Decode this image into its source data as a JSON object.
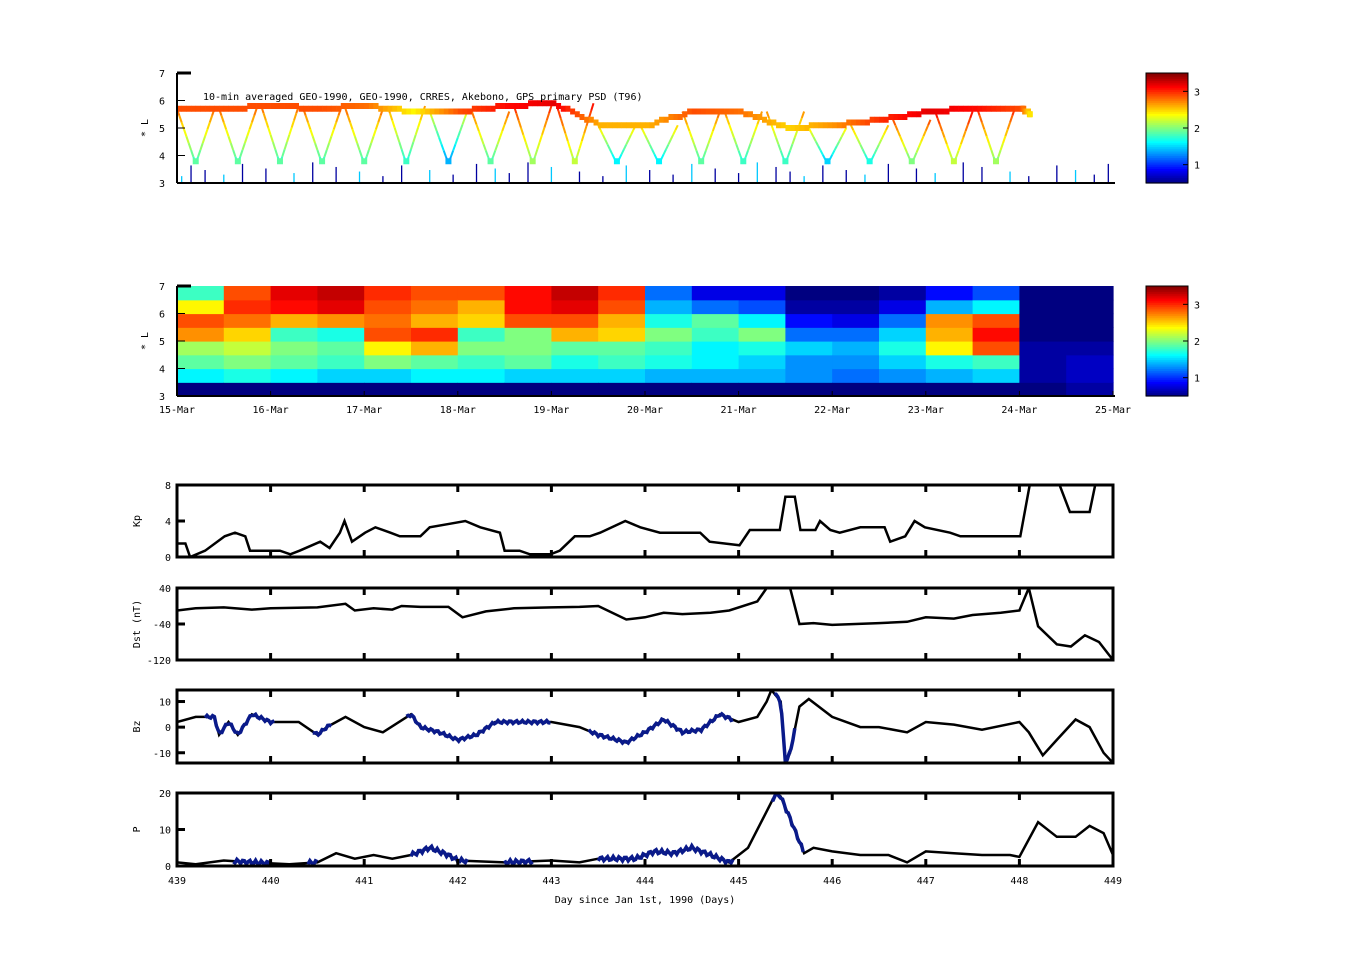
{
  "chart_data": [
    {
      "type": "scatter",
      "title": "10-min averaged GEO-1990, GEO-1990, CRRES, Akebono, GPS  primary PSD (T96)",
      "ylabel": "L*",
      "ylim": [
        3,
        7
      ],
      "yticks": [
        "3",
        "4",
        "5",
        "6",
        "7"
      ],
      "xlim": [
        "15-Mar",
        "25-Mar"
      ],
      "colorbar": {
        "clim": [
          0.5,
          3.5
        ],
        "ticks": [
          "1",
          "2",
          "3"
        ],
        "colormap": "jet"
      },
      "apogee_track": [
        [
          15.0,
          5.7,
          2.9
        ],
        [
          15.5,
          5.7,
          2.9
        ],
        [
          16.0,
          5.8,
          2.9
        ],
        [
          16.5,
          5.7,
          2.9
        ],
        [
          17.0,
          5.8,
          2.8
        ],
        [
          17.5,
          5.6,
          2.4
        ],
        [
          18.0,
          5.6,
          2.9
        ],
        [
          18.5,
          5.8,
          3.1
        ],
        [
          19.0,
          5.9,
          3.2
        ],
        [
          19.5,
          5.1,
          2.6
        ],
        [
          20.0,
          5.1,
          2.6
        ],
        [
          20.5,
          5.6,
          2.9
        ],
        [
          21.0,
          5.6,
          2.8
        ],
        [
          21.5,
          5.0,
          2.5
        ],
        [
          22.0,
          5.1,
          2.7
        ],
        [
          22.5,
          5.3,
          3.0
        ],
        [
          23.0,
          5.6,
          3.2
        ],
        [
          23.5,
          5.7,
          3.1
        ],
        [
          24.0,
          5.7,
          2.9
        ],
        [
          24.1,
          5.5,
          2.4
        ]
      ],
      "pass_times": [
        15.2,
        15.65,
        16.1,
        16.55,
        17.0,
        17.45,
        17.9,
        18.35,
        18.8,
        19.25,
        19.7,
        20.15,
        20.6,
        21.05,
        21.5,
        21.95,
        22.4,
        22.85,
        23.3,
        23.75
      ],
      "gps_spike_times": [
        15.05,
        15.15,
        15.3,
        15.5,
        15.7,
        15.95,
        16.25,
        16.45,
        16.7,
        16.95,
        17.2,
        17.4,
        17.7,
        17.95,
        18.2,
        18.4,
        18.55,
        18.75,
        19.0,
        19.3,
        19.55,
        19.8,
        20.05,
        20.3,
        20.5,
        20.75,
        21.0,
        21.2,
        21.4,
        21.55,
        21.7,
        21.9,
        22.15,
        22.35,
        22.6,
        22.9,
        23.1,
        23.4,
        23.6,
        23.9,
        24.1,
        24.4,
        24.6,
        24.8,
        24.95
      ]
    },
    {
      "type": "heatmap",
      "ylabel": "L*",
      "ylim": [
        3,
        7
      ],
      "yticks": [
        "3",
        "4",
        "5",
        "6",
        "7"
      ],
      "xticks": [
        "15-Mar",
        "16-Mar",
        "17-Mar",
        "18-Mar",
        "19-Mar",
        "20-Mar",
        "21-Mar",
        "22-Mar",
        "23-Mar",
        "24-Mar",
        "25-Mar"
      ],
      "l_bins": [
        3.25,
        3.75,
        4.25,
        4.75,
        5.25,
        5.75,
        6.25,
        6.75
      ],
      "colorbar": {
        "clim": [
          0.5,
          3.5
        ],
        "ticks": [
          "1",
          "2",
          "3"
        ],
        "colormap": "jet"
      },
      "values": [
        [
          0.5,
          1.6,
          1.9,
          2.1,
          2.7,
          2.9,
          2.4,
          1.8
        ],
        [
          0.5,
          1.7,
          2.0,
          2.2,
          2.5,
          2.8,
          3.0,
          2.9
        ],
        [
          0.5,
          1.6,
          1.9,
          2.0,
          1.8,
          2.6,
          3.1,
          3.2
        ],
        [
          0.5,
          1.5,
          1.8,
          1.9,
          1.7,
          2.7,
          3.2,
          3.3
        ],
        [
          0.5,
          1.5,
          2.0,
          2.4,
          2.9,
          2.8,
          2.9,
          3.0
        ],
        [
          0.5,
          1.6,
          1.9,
          2.6,
          3.0,
          2.6,
          2.8,
          2.9
        ],
        [
          0.5,
          1.6,
          1.8,
          2.0,
          1.8,
          2.5,
          2.6,
          2.9
        ],
        [
          0.5,
          1.5,
          1.9,
          2.0,
          2.0,
          2.9,
          3.1,
          3.1
        ],
        [
          0.5,
          1.5,
          1.7,
          1.9,
          2.6,
          2.9,
          3.2,
          3.3
        ],
        [
          0.5,
          1.5,
          1.8,
          1.9,
          2.5,
          2.6,
          2.9,
          3.0
        ],
        [
          0.5,
          1.4,
          1.7,
          1.8,
          2.0,
          1.7,
          1.4,
          1.2
        ],
        [
          0.5,
          1.4,
          1.6,
          1.6,
          1.8,
          1.9,
          1.2,
          0.8
        ],
        [
          0.5,
          1.4,
          1.5,
          1.7,
          2.0,
          1.6,
          1.1,
          0.8
        ],
        [
          0.5,
          1.3,
          1.3,
          1.5,
          1.2,
          0.9,
          0.6,
          0.5
        ],
        [
          0.5,
          1.2,
          1.3,
          1.4,
          1.2,
          0.8,
          0.6,
          0.5
        ],
        [
          0.5,
          1.3,
          1.5,
          1.7,
          1.5,
          1.2,
          0.8,
          0.6
        ],
        [
          0.5,
          1.4,
          1.7,
          2.4,
          2.6,
          2.7,
          1.4,
          0.9
        ],
        [
          0.5,
          1.5,
          1.8,
          2.9,
          3.1,
          2.9,
          1.6,
          1.1
        ],
        [
          0.5,
          0.6,
          0.6,
          0.6,
          0.5,
          0.5,
          0.5,
          0.5
        ],
        [
          0.6,
          0.7,
          0.7,
          0.6,
          0.5,
          0.5,
          0.5,
          0.5
        ]
      ]
    },
    {
      "type": "line",
      "ylabel": "Kp",
      "ylim": [
        0,
        8
      ],
      "yticks": [
        0,
        4,
        8
      ],
      "x": [
        439.0,
        439.09,
        439.14,
        439.3,
        439.51,
        439.62,
        439.73,
        439.78,
        440.1,
        440.21,
        440.31,
        440.53,
        440.63,
        440.74,
        440.79,
        440.87,
        441.01,
        441.12,
        441.28,
        441.38,
        441.6,
        441.7,
        441.92,
        442.08,
        442.24,
        442.45,
        442.5,
        442.66,
        442.77,
        442.99,
        443.09,
        443.25,
        443.41,
        443.52,
        443.79,
        443.95,
        444.16,
        444.59,
        444.69,
        445.01,
        445.12,
        445.44,
        445.5,
        445.6,
        445.66,
        445.82,
        445.87,
        445.98,
        446.08,
        446.3,
        446.56,
        446.62,
        446.78,
        446.88,
        446.99,
        447.26,
        447.37,
        448.01,
        448.11,
        448.43,
        448.54,
        448.75,
        448.81,
        449.0
      ],
      "y": [
        1.5,
        1.5,
        0,
        0.7,
        2.3,
        2.7,
        2.3,
        0.7,
        0.7,
        0.3,
        0.7,
        1.7,
        1.0,
        2.7,
        4,
        1.7,
        2.7,
        3.3,
        2.7,
        2.3,
        2.3,
        3.3,
        3.7,
        4,
        3.3,
        2.7,
        0.7,
        0.7,
        0.3,
        0.3,
        0.7,
        2.3,
        2.3,
        2.7,
        4,
        3.3,
        2.7,
        2.7,
        1.7,
        1.3,
        3,
        3,
        6.7,
        6.7,
        3,
        3,
        4,
        3,
        2.7,
        3.3,
        3.3,
        1.7,
        2.3,
        4,
        3.3,
        2.7,
        2.3,
        2.3,
        8.7,
        8.7,
        5,
        5,
        8.7,
        8.7
      ]
    },
    {
      "type": "line",
      "ylabel": "Dst (nT)",
      "ylim": [
        -120,
        40
      ],
      "yticks": [
        40,
        -40,
        -120
      ],
      "x": [
        439.0,
        439.2,
        439.5,
        439.8,
        440.0,
        440.5,
        440.8,
        440.9,
        441.1,
        441.3,
        441.4,
        441.6,
        441.9,
        442.05,
        442.3,
        442.6,
        443.0,
        443.3,
        443.5,
        443.8,
        444.0,
        444.2,
        444.4,
        444.7,
        444.9,
        445.2,
        445.3,
        445.4,
        445.55,
        445.65,
        445.8,
        446.0,
        446.5,
        446.8,
        447.0,
        447.3,
        447.5,
        447.8,
        448.0,
        448.1,
        448.2,
        448.4,
        448.55,
        448.7,
        448.85,
        449.0
      ],
      "y": [
        -10,
        -5,
        -3,
        -8,
        -5,
        -3,
        5,
        -10,
        -5,
        -8,
        0,
        -2,
        -2,
        -25,
        -12,
        -5,
        -3,
        -2,
        0,
        -30,
        -25,
        -15,
        -18,
        -15,
        -10,
        10,
        40,
        45,
        40,
        -40,
        -38,
        -42,
        -38,
        -35,
        -25,
        -28,
        -20,
        -15,
        -10,
        40,
        -45,
        -85,
        -90,
        -65,
        -80,
        -120
      ]
    },
    {
      "type": "line",
      "ylabel": "Bz",
      "ylim": [
        -14,
        14.5
      ],
      "yticks": [
        10,
        0,
        -10
      ],
      "x": [
        439.0,
        439.2,
        439.4,
        439.45,
        439.55,
        439.65,
        439.8,
        440.0,
        440.3,
        440.5,
        440.6,
        440.8,
        441.0,
        441.2,
        441.5,
        441.6,
        441.8,
        442.0,
        442.2,
        442.4,
        442.7,
        443.0,
        443.3,
        443.5,
        443.8,
        444.0,
        444.2,
        444.4,
        444.6,
        444.8,
        445.0,
        445.2,
        445.3,
        445.35,
        445.45,
        445.5,
        445.55,
        445.65,
        445.75,
        446.0,
        446.3,
        446.5,
        446.8,
        447.0,
        447.3,
        447.6,
        448.0,
        448.1,
        448.25,
        448.4,
        448.6,
        448.75,
        448.9,
        449.0
      ],
      "y": [
        2,
        4,
        4,
        -3,
        2,
        -3,
        5,
        2,
        2,
        -3,
        0,
        4,
        0,
        -2,
        5,
        0,
        -2,
        -5,
        -3,
        2,
        2,
        2,
        0,
        -3,
        -6,
        -2,
        3,
        -2,
        -1,
        5,
        2,
        4,
        10,
        15,
        10,
        -14,
        -10,
        8,
        11,
        4,
        0,
        0,
        -2,
        2,
        1,
        -1,
        2,
        -2,
        -11,
        -5,
        3,
        0,
        -10,
        -14
      ],
      "observed_intervals": [
        [
          439.3,
          440.05
        ],
        [
          440.45,
          440.65
        ],
        [
          441.45,
          443.0
        ],
        [
          443.4,
          444.95
        ],
        [
          445.38,
          445.6
        ]
      ]
    },
    {
      "type": "line",
      "ylabel": "P",
      "ylim": [
        0,
        20
      ],
      "yticks": [
        0,
        10,
        20
      ],
      "xlabel": "Day since Jan 1st, 1990 (Days)",
      "xticks": [
        439,
        440,
        441,
        442,
        443,
        444,
        445,
        446,
        447,
        448,
        449
      ],
      "x": [
        439.0,
        439.2,
        439.5,
        439.8,
        440.2,
        440.5,
        440.7,
        440.9,
        441.1,
        441.3,
        441.5,
        441.7,
        441.9,
        442.0,
        442.5,
        443.0,
        443.3,
        443.5,
        443.9,
        444.1,
        444.3,
        444.5,
        444.7,
        444.9,
        445.1,
        445.3,
        445.4,
        445.45,
        445.55,
        445.7,
        445.8,
        446.0,
        446.3,
        446.6,
        446.8,
        447.0,
        447.3,
        447.6,
        447.9,
        448.0,
        448.2,
        448.4,
        448.6,
        448.75,
        448.9,
        449.0
      ],
      "y": [
        1,
        0.5,
        1.5,
        1,
        0.5,
        1,
        3.5,
        2,
        3,
        2,
        3,
        5,
        3,
        1.5,
        1,
        1.5,
        1,
        2,
        2,
        4,
        3.5,
        5,
        3,
        1,
        5,
        15,
        20,
        19,
        13,
        3.5,
        5,
        4,
        3,
        3,
        1,
        4,
        3.5,
        3,
        3,
        2.5,
        12,
        8,
        8,
        11,
        9,
        3
      ],
      "observed_intervals": [
        [
          439.6,
          440.0
        ],
        [
          440.4,
          440.5
        ],
        [
          441.5,
          442.1
        ],
        [
          442.5,
          442.8
        ],
        [
          443.5,
          444.95
        ],
        [
          445.35,
          445.7
        ]
      ]
    }
  ],
  "colors": {
    "model_line": "#000000",
    "observed_line": "#0a1a8a"
  }
}
